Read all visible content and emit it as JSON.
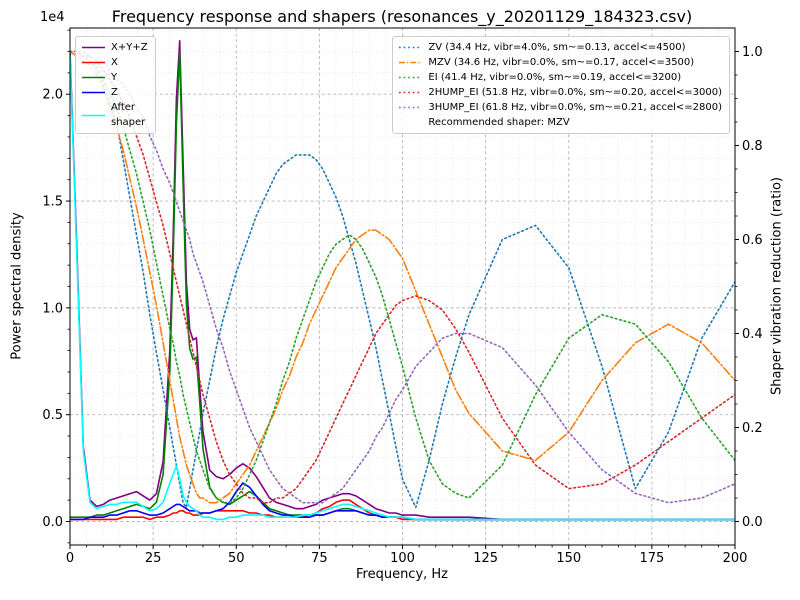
{
  "chart_data": {
    "type": "line",
    "title": "Frequency response and shapers (resonances_y_20201129_184323.csv)",
    "xlabel": "Frequency, Hz",
    "ylabel_left": "Power spectral density",
    "ylabel_right": "Shaper vibration reduction (ratio)",
    "offset_text": "1e4",
    "psd_values_scale": "1e4",
    "xlim": [
      0,
      200
    ],
    "ylim_left": [
      -0.11,
      2.31
    ],
    "ylim_right": [
      -0.05,
      1.05
    ],
    "x_major_ticks": [
      0,
      25,
      50,
      75,
      100,
      125,
      150,
      175,
      200
    ],
    "x_tick_labels": [
      "0",
      "25",
      "50",
      "75",
      "100",
      "125",
      "150",
      "175",
      "200"
    ],
    "y_left_major_ticks": [
      0,
      0.5,
      1.0,
      1.5,
      2.0
    ],
    "y_left_tick_labels": [
      "0.0",
      "0.5",
      "1.0",
      "1.5",
      "2.0"
    ],
    "y_right_major_ticks": [
      0,
      0.2,
      0.4,
      0.6,
      0.8,
      1.0
    ],
    "y_right_tick_labels": [
      "0.0",
      "0.2",
      "0.4",
      "0.6",
      "0.8",
      "1.0"
    ],
    "grid": {
      "major": true,
      "minor": true
    },
    "legend_position_left": "upper left",
    "legend_position_right": "upper right",
    "recommended_shaper": "MZV",
    "x": [
      0,
      2,
      4,
      6,
      8,
      10,
      12,
      14,
      16,
      18,
      20,
      22,
      24,
      26,
      28,
      30,
      31,
      32,
      33,
      34,
      35,
      36,
      37,
      38,
      39,
      40,
      42,
      44,
      46,
      48,
      50,
      52,
      54,
      56,
      58,
      60,
      62,
      64,
      66,
      68,
      70,
      72,
      74,
      76,
      78,
      80,
      82,
      84,
      86,
      88,
      90,
      92,
      94,
      96,
      98,
      100,
      104,
      108,
      112,
      116,
      120,
      130,
      140,
      150,
      160,
      170,
      180,
      190,
      200
    ],
    "psd_series": [
      {
        "name": "X+Y+Z",
        "color": "#800080",
        "style": "solid",
        "axis": "left",
        "values": [
          2.2,
          1.3,
          0.35,
          0.1,
          0.07,
          0.08,
          0.1,
          0.11,
          0.12,
          0.13,
          0.14,
          0.12,
          0.1,
          0.13,
          0.28,
          0.8,
          1.32,
          1.98,
          2.25,
          1.68,
          1.12,
          0.9,
          0.85,
          0.86,
          0.63,
          0.42,
          0.24,
          0.21,
          0.2,
          0.22,
          0.25,
          0.27,
          0.25,
          0.21,
          0.16,
          0.11,
          0.09,
          0.08,
          0.07,
          0.06,
          0.06,
          0.07,
          0.08,
          0.1,
          0.11,
          0.12,
          0.13,
          0.13,
          0.12,
          0.1,
          0.08,
          0.06,
          0.05,
          0.04,
          0.04,
          0.03,
          0.03,
          0.02,
          0.02,
          0.02,
          0.02,
          0.01,
          0.01,
          0.01,
          0.01,
          0.01,
          0.01,
          0.01,
          0.01
        ]
      },
      {
        "name": "X",
        "color": "#ff0000",
        "style": "solid",
        "axis": "left",
        "values": [
          0.01,
          0.01,
          0.01,
          0.01,
          0.01,
          0.01,
          0.01,
          0.01,
          0.02,
          0.02,
          0.02,
          0.02,
          0.01,
          0.02,
          0.02,
          0.03,
          0.04,
          0.04,
          0.05,
          0.05,
          0.04,
          0.04,
          0.03,
          0.03,
          0.03,
          0.04,
          0.04,
          0.05,
          0.05,
          0.05,
          0.05,
          0.05,
          0.04,
          0.04,
          0.03,
          0.03,
          0.02,
          0.02,
          0.02,
          0.02,
          0.02,
          0.03,
          0.04,
          0.06,
          0.07,
          0.09,
          0.1,
          0.1,
          0.08,
          0.06,
          0.04,
          0.03,
          0.02,
          0.02,
          0.02,
          0.01,
          0.01,
          0.01,
          0.01,
          0.01,
          0.01,
          0.01,
          0.01,
          0.01,
          0.01,
          0.01,
          0.01,
          0.01,
          0.01
        ]
      },
      {
        "name": "Y",
        "color": "#008000",
        "style": "solid",
        "axis": "left",
        "values": [
          0.02,
          0.02,
          0.02,
          0.02,
          0.03,
          0.03,
          0.04,
          0.05,
          0.06,
          0.07,
          0.08,
          0.07,
          0.06,
          0.09,
          0.22,
          0.7,
          1.22,
          1.86,
          2.2,
          1.58,
          1.02,
          0.81,
          0.76,
          0.77,
          0.56,
          0.34,
          0.16,
          0.11,
          0.09,
          0.08,
          0.1,
          0.12,
          0.14,
          0.12,
          0.09,
          0.06,
          0.05,
          0.04,
          0.03,
          0.03,
          0.03,
          0.03,
          0.03,
          0.03,
          0.04,
          0.05,
          0.06,
          0.06,
          0.05,
          0.04,
          0.03,
          0.03,
          0.02,
          0.02,
          0.02,
          0.02,
          0.01,
          0.01,
          0.01,
          0.01,
          0.01,
          0.01,
          0.01,
          0.01,
          0.01,
          0.01,
          0.01,
          0.01,
          0.01
        ]
      },
      {
        "name": "Z",
        "color": "#0000ff",
        "style": "solid",
        "axis": "left",
        "values": [
          0.01,
          0.01,
          0.01,
          0.02,
          0.02,
          0.02,
          0.03,
          0.03,
          0.04,
          0.05,
          0.05,
          0.04,
          0.03,
          0.03,
          0.04,
          0.06,
          0.07,
          0.08,
          0.08,
          0.07,
          0.06,
          0.05,
          0.05,
          0.05,
          0.04,
          0.04,
          0.04,
          0.05,
          0.06,
          0.09,
          0.14,
          0.18,
          0.16,
          0.12,
          0.08,
          0.05,
          0.04,
          0.03,
          0.03,
          0.02,
          0.02,
          0.02,
          0.03,
          0.03,
          0.04,
          0.05,
          0.05,
          0.05,
          0.05,
          0.04,
          0.03,
          0.03,
          0.02,
          0.02,
          0.02,
          0.02,
          0.01,
          0.01,
          0.01,
          0.01,
          0.01,
          0.01,
          0.01,
          0.01,
          0.01,
          0.01,
          0.01,
          0.01,
          0.01
        ]
      },
      {
        "name": "After shaper",
        "color": "#00ffff",
        "style": "solid",
        "axis": "left",
        "values": [
          2.18,
          1.26,
          0.33,
          0.09,
          0.06,
          0.07,
          0.08,
          0.08,
          0.09,
          0.09,
          0.09,
          0.07,
          0.05,
          0.06,
          0.09,
          0.18,
          0.22,
          0.26,
          0.2,
          0.12,
          0.09,
          0.07,
          0.06,
          0.05,
          0.03,
          0.02,
          0.02,
          0.01,
          0.01,
          0.02,
          0.02,
          0.03,
          0.03,
          0.03,
          0.03,
          0.02,
          0.02,
          0.02,
          0.02,
          0.02,
          0.03,
          0.03,
          0.04,
          0.05,
          0.06,
          0.07,
          0.08,
          0.08,
          0.07,
          0.06,
          0.05,
          0.04,
          0.03,
          0.02,
          0.02,
          0.02,
          0.01,
          0.01,
          0.01,
          0.01,
          0.01,
          0.01,
          0.01,
          0.01,
          0.01,
          0.01,
          0.01,
          0.01,
          0.01
        ]
      }
    ],
    "shaper_series": [
      {
        "name": "ZV",
        "color": "#1f77b4",
        "style": "dotted",
        "axis": "right",
        "values": [
          1,
          1,
          0.99,
          0.98,
          0.96,
          0.93,
          0.89,
          0.85,
          0.77,
          0.69,
          0.61,
          0.53,
          0.44,
          0.36,
          0.28,
          0.2,
          0.16,
          0.12,
          0.08,
          0.04,
          0.03,
          0.07,
          0.11,
          0.15,
          0.19,
          0.23,
          0.3,
          0.37,
          0.43,
          0.48,
          0.53,
          0.57,
          0.61,
          0.65,
          0.68,
          0.71,
          0.74,
          0.76,
          0.77,
          0.78,
          0.78,
          0.78,
          0.77,
          0.75,
          0.72,
          0.69,
          0.65,
          0.6,
          0.55,
          0.49,
          0.43,
          0.37,
          0.3,
          0.23,
          0.16,
          0.09,
          0.03,
          0.13,
          0.25,
          0.35,
          0.44,
          0.6,
          0.63,
          0.54,
          0.33,
          0.07,
          0.19,
          0.39,
          0.51
        ]
      },
      {
        "name": "MZV",
        "color": "#ff7f0e",
        "style": "dashdot",
        "axis": "right",
        "values": [
          1,
          0.99,
          0.98,
          0.97,
          0.95,
          0.92,
          0.88,
          0.84,
          0.79,
          0.73,
          0.67,
          0.6,
          0.53,
          0.46,
          0.38,
          0.3,
          0.26,
          0.22,
          0.18,
          0.15,
          0.12,
          0.1,
          0.08,
          0.06,
          0.05,
          0.05,
          0.04,
          0.04,
          0.05,
          0.06,
          0.08,
          0.1,
          0.12,
          0.15,
          0.18,
          0.21,
          0.24,
          0.28,
          0.31,
          0.35,
          0.38,
          0.42,
          0.45,
          0.48,
          0.51,
          0.54,
          0.56,
          0.58,
          0.6,
          0.61,
          0.62,
          0.62,
          0.61,
          0.6,
          0.58,
          0.56,
          0.49,
          0.42,
          0.35,
          0.28,
          0.23,
          0.15,
          0.13,
          0.19,
          0.3,
          0.38,
          0.42,
          0.38,
          0.3
        ]
      },
      {
        "name": "EI",
        "color": "#2ca02c",
        "style": "dotted",
        "axis": "right",
        "values": [
          1,
          1,
          0.99,
          0.98,
          0.97,
          0.94,
          0.91,
          0.88,
          0.84,
          0.79,
          0.74,
          0.68,
          0.62,
          0.55,
          0.48,
          0.41,
          0.38,
          0.34,
          0.31,
          0.27,
          0.24,
          0.21,
          0.18,
          0.15,
          0.13,
          0.11,
          0.07,
          0.05,
          0.04,
          0.04,
          0.05,
          0.07,
          0.1,
          0.13,
          0.17,
          0.21,
          0.25,
          0.3,
          0.34,
          0.39,
          0.43,
          0.47,
          0.51,
          0.54,
          0.57,
          0.59,
          0.6,
          0.61,
          0.6,
          0.58,
          0.55,
          0.52,
          0.48,
          0.43,
          0.38,
          0.33,
          0.22,
          0.13,
          0.08,
          0.06,
          0.05,
          0.12,
          0.27,
          0.39,
          0.44,
          0.42,
          0.34,
          0.22,
          0.13
        ]
      },
      {
        "name": "2HUMP_EI",
        "color": "#d62728",
        "style": "dotted",
        "axis": "right",
        "values": [
          1,
          1,
          0.99,
          0.99,
          0.98,
          0.96,
          0.94,
          0.92,
          0.89,
          0.86,
          0.82,
          0.78,
          0.73,
          0.68,
          0.63,
          0.57,
          0.54,
          0.51,
          0.48,
          0.45,
          0.42,
          0.39,
          0.36,
          0.33,
          0.3,
          0.27,
          0.22,
          0.17,
          0.13,
          0.1,
          0.08,
          0.06,
          0.05,
          0.05,
          0.04,
          0.04,
          0.05,
          0.05,
          0.06,
          0.07,
          0.09,
          0.11,
          0.13,
          0.16,
          0.19,
          0.22,
          0.25,
          0.28,
          0.31,
          0.34,
          0.37,
          0.4,
          0.42,
          0.44,
          0.46,
          0.47,
          0.48,
          0.47,
          0.45,
          0.41,
          0.36,
          0.22,
          0.12,
          0.07,
          0.08,
          0.12,
          0.17,
          0.22,
          0.27
        ]
      },
      {
        "name": "3HUMP_EI",
        "color": "#9467bd",
        "style": "dotted",
        "axis": "right",
        "values": [
          1,
          1,
          1,
          0.99,
          0.98,
          0.98,
          0.96,
          0.94,
          0.93,
          0.91,
          0.88,
          0.86,
          0.82,
          0.79,
          0.75,
          0.72,
          0.7,
          0.68,
          0.66,
          0.64,
          0.62,
          0.6,
          0.57,
          0.55,
          0.53,
          0.51,
          0.46,
          0.41,
          0.37,
          0.32,
          0.28,
          0.24,
          0.2,
          0.17,
          0.14,
          0.11,
          0.09,
          0.07,
          0.06,
          0.05,
          0.04,
          0.04,
          0.04,
          0.04,
          0.05,
          0.06,
          0.07,
          0.09,
          0.11,
          0.13,
          0.15,
          0.18,
          0.2,
          0.23,
          0.26,
          0.28,
          0.33,
          0.36,
          0.39,
          0.4,
          0.4,
          0.37,
          0.29,
          0.19,
          0.11,
          0.06,
          0.04,
          0.05,
          0.08
        ]
      }
    ]
  },
  "legend_left": {
    "items": [
      {
        "label": "X+Y+Z",
        "color": "#800080",
        "style": "solid"
      },
      {
        "label": "X",
        "color": "#ff0000",
        "style": "solid"
      },
      {
        "label": "Y",
        "color": "#008000",
        "style": "solid"
      },
      {
        "label": "Z",
        "color": "#0000ff",
        "style": "solid"
      },
      {
        "label": "After\nshaper",
        "color": "#00ffff",
        "style": "solid"
      }
    ]
  },
  "legend_right": {
    "items": [
      {
        "label": "ZV (34.4 Hz, vibr=4.0%, sm~=0.13, accel<=4500)",
        "color": "#1f77b4",
        "style": "dotted"
      },
      {
        "label": "MZV (34.6 Hz, vibr=0.0%, sm~=0.17, accel<=3500)",
        "color": "#ff7f0e",
        "style": "dashdot"
      },
      {
        "label": "EI (41.4 Hz, vibr=0.0%, sm~=0.19, accel<=3200)",
        "color": "#2ca02c",
        "style": "dotted"
      },
      {
        "label": "2HUMP_EI (51.8 Hz, vibr=0.0%, sm~=0.20, accel<=3000)",
        "color": "#d62728",
        "style": "dotted"
      },
      {
        "label": "3HUMP_EI (61.8 Hz, vibr=0.0%, sm~=0.21, accel<=2800)",
        "color": "#9467bd",
        "style": "dotted"
      }
    ],
    "note": "Recommended shaper: MZV"
  }
}
